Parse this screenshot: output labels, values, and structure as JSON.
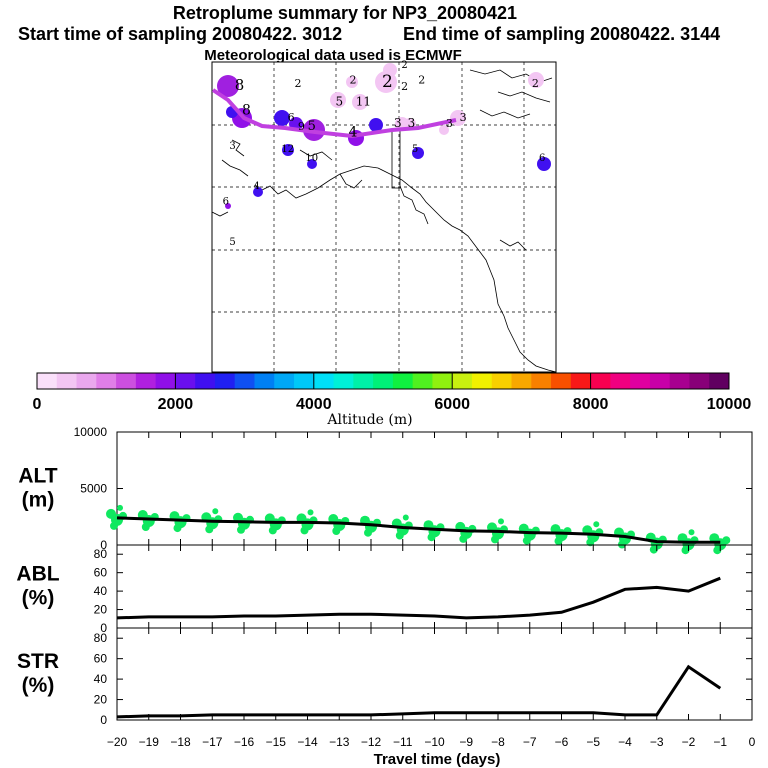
{
  "header": {
    "title": "Retroplume summary for NP3_20080421",
    "start_label": "Start time of sampling 20080422.  3012",
    "end_label": "End time of sampling 20080422.  3144",
    "met_label": "Meteorological data used is ECMWF"
  },
  "colorbar": {
    "ticks": [
      "0",
      "2000",
      "4000",
      "6000",
      "8000",
      "10000"
    ],
    "label": "Altitude (m)",
    "colors": [
      "#fae0fa",
      "#f3c6f3",
      "#eaa8ee",
      "#e07ee8",
      "#cc4fe0",
      "#b020e0",
      "#9010e8",
      "#6a10ee",
      "#4010f0",
      "#2020f2",
      "#1050f2",
      "#0080f4",
      "#00a8f6",
      "#00c8f8",
      "#00e0f8",
      "#00f0d8",
      "#00f0a8",
      "#00f078",
      "#10f040",
      "#50f020",
      "#90f010",
      "#c8f010",
      "#f0f000",
      "#f8d000",
      "#f8a800",
      "#f88000",
      "#f85000",
      "#f81818",
      "#f80050",
      "#f00080",
      "#e000a0",
      "#c800a8",
      "#a80090",
      "#880078",
      "#600060"
    ]
  },
  "map": {
    "labels": [
      {
        "text": "8",
        "ax": 0.08,
        "ay": 0.09,
        "size": 15
      },
      {
        "text": "2",
        "ax": 0.25,
        "ay": 0.08,
        "size": 11
      },
      {
        "text": "2",
        "ax": 0.41,
        "ay": 0.07,
        "size": 11
      },
      {
        "text": "2",
        "ax": 0.51,
        "ay": 0.08,
        "size": 17
      },
      {
        "text": "2",
        "ax": 0.56,
        "ay": 0.02,
        "size": 10
      },
      {
        "text": "2",
        "ax": 0.56,
        "ay": 0.09,
        "size": 11
      },
      {
        "text": "2",
        "ax": 0.61,
        "ay": 0.07,
        "size": 11
      },
      {
        "text": "2",
        "ax": 0.94,
        "ay": 0.08,
        "size": 11
      },
      {
        "text": "5",
        "ax": 0.37,
        "ay": 0.14,
        "size": 12
      },
      {
        "text": "11",
        "ax": 0.44,
        "ay": 0.14,
        "size": 12
      },
      {
        "text": "8",
        "ax": 0.1,
        "ay": 0.17,
        "size": 14
      },
      {
        "text": "6",
        "ax": 0.23,
        "ay": 0.19,
        "size": 11
      },
      {
        "text": "9",
        "ax": 0.26,
        "ay": 0.22,
        "size": 11
      },
      {
        "text": "5",
        "ax": 0.29,
        "ay": 0.22,
        "size": 13
      },
      {
        "text": "4",
        "ax": 0.41,
        "ay": 0.24,
        "size": 14
      },
      {
        "text": "3",
        "ax": 0.54,
        "ay": 0.21,
        "size": 12
      },
      {
        "text": "3",
        "ax": 0.58,
        "ay": 0.21,
        "size": 12
      },
      {
        "text": "3",
        "ax": 0.69,
        "ay": 0.21,
        "size": 11
      },
      {
        "text": "3",
        "ax": 0.73,
        "ay": 0.19,
        "size": 11
      },
      {
        "text": "3",
        "ax": 0.06,
        "ay": 0.28,
        "size": 10
      },
      {
        "text": "12",
        "ax": 0.22,
        "ay": 0.29,
        "size": 10
      },
      {
        "text": "10",
        "ax": 0.29,
        "ay": 0.32,
        "size": 10
      },
      {
        "text": "5",
        "ax": 0.59,
        "ay": 0.29,
        "size": 10
      },
      {
        "text": "6",
        "ax": 0.96,
        "ay": 0.32,
        "size": 10
      },
      {
        "text": "4",
        "ax": 0.13,
        "ay": 0.41,
        "size": 10
      },
      {
        "text": "6",
        "ax": 0.04,
        "ay": 0.46,
        "size": 10
      },
      {
        "text": "5",
        "ax": 0.06,
        "ay": 0.59,
        "size": 10
      }
    ]
  },
  "chart_data": [
    {
      "type": "line",
      "panel": "ALT",
      "title": "ALT",
      "ylabel": "(m)",
      "ylim": [
        0,
        10000
      ],
      "yticks": [
        0,
        5000,
        10000
      ],
      "x": [
        -20,
        -19,
        -18,
        -17,
        -16,
        -15,
        -14,
        -13,
        -12,
        -11,
        -10,
        -9,
        -8,
        -7,
        -6,
        -5,
        -4,
        -3,
        -2,
        -1
      ],
      "values": [
        2400,
        2300,
        2200,
        2100,
        2050,
        2000,
        2000,
        1950,
        1800,
        1550,
        1400,
        1250,
        1200,
        1100,
        1050,
        950,
        750,
        300,
        250,
        250
      ],
      "scatter_color": "#10e860"
    },
    {
      "type": "line",
      "panel": "ABL",
      "title": "ABL",
      "ylabel": "(%)",
      "ylim": [
        0,
        90
      ],
      "yticks": [
        0,
        20,
        40,
        60,
        80
      ],
      "x": [
        -20,
        -19,
        -18,
        -17,
        -16,
        -15,
        -14,
        -13,
        -12,
        -11,
        -10,
        -9,
        -8,
        -7,
        -6,
        -5,
        -4,
        -3,
        -2,
        -1
      ],
      "values": [
        11,
        12,
        12,
        12,
        13,
        13,
        14,
        15,
        15,
        14,
        13,
        11,
        12,
        14,
        17,
        28,
        42,
        44,
        40,
        54
      ]
    },
    {
      "type": "line",
      "panel": "STR",
      "title": "STR",
      "ylabel": "(%)",
      "ylim": [
        0,
        90
      ],
      "yticks": [
        0,
        20,
        40,
        60,
        80
      ],
      "x": [
        -20,
        -19,
        -18,
        -17,
        -16,
        -15,
        -14,
        -13,
        -12,
        -11,
        -10,
        -9,
        -8,
        -7,
        -6,
        -5,
        -4,
        -3,
        -2,
        -1
      ],
      "values": [
        3,
        4,
        4,
        5,
        5,
        5,
        5,
        5,
        5,
        6,
        7,
        7,
        7,
        7,
        7,
        7,
        5,
        5,
        52,
        31
      ]
    }
  ],
  "xaxis": {
    "label": "Travel time (days)",
    "ticks": [
      "−20",
      "−19",
      "−18",
      "−17",
      "−16",
      "−15",
      "−14",
      "−13",
      "−12",
      "−11",
      "−10",
      "−9",
      "−8",
      "−7",
      "−6",
      "−5",
      "−4",
      "−3",
      "−2",
      "−1",
      "0"
    ]
  }
}
